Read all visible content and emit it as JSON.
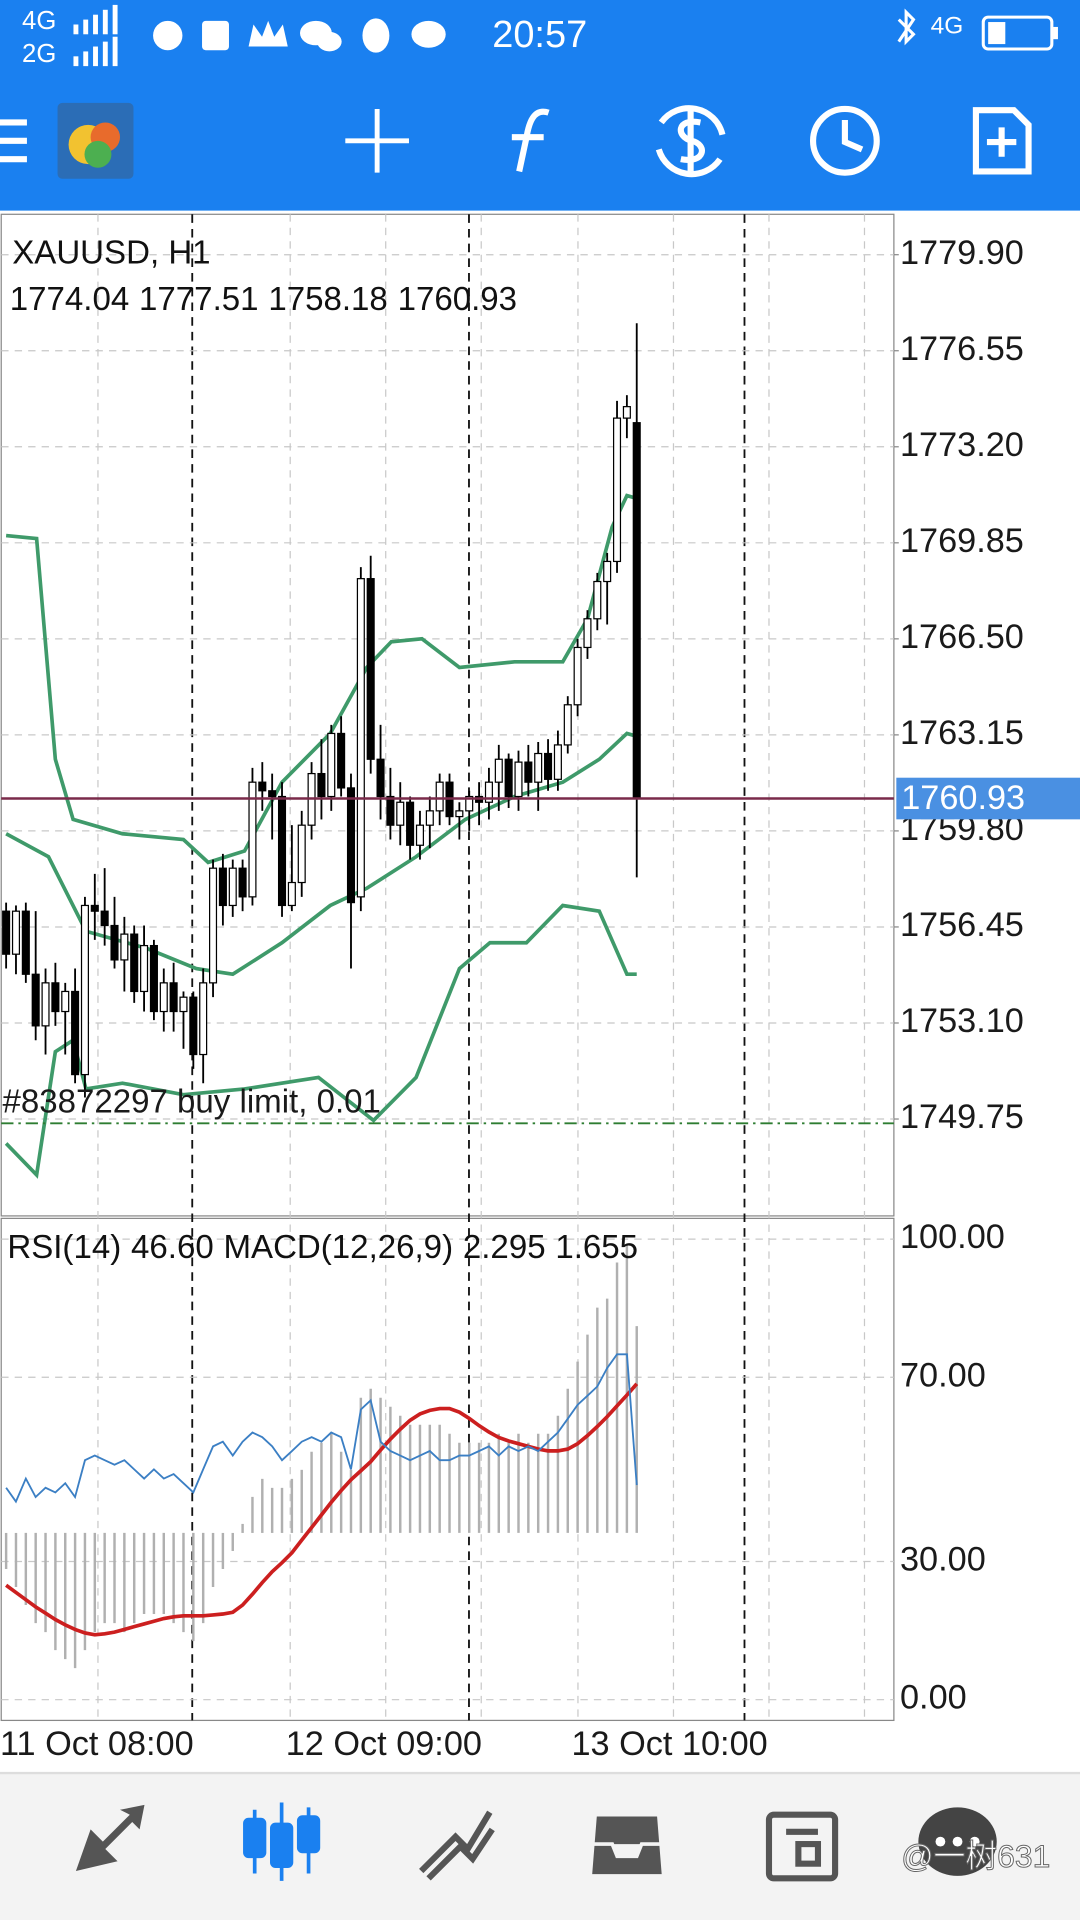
{
  "status_bar": {
    "signal_1": "4G",
    "signal_2": "2G",
    "time": "20:57",
    "network": "4G"
  },
  "watermark": "@一树631",
  "chart_data": [
    {
      "type": "candlestick",
      "title": "XAUUSD, H1",
      "categories": [
        "11 Oct 08:00",
        null,
        null,
        null,
        null,
        null,
        null,
        null,
        null,
        null,
        null,
        null,
        null,
        null,
        null,
        null,
        null,
        null,
        null,
        null,
        null,
        null,
        null,
        null,
        null,
        null,
        null,
        null,
        null,
        "12 Oct 09:00",
        null,
        null,
        null,
        null,
        null,
        null,
        null,
        null,
        null,
        null,
        null,
        null,
        null,
        null,
        null,
        null,
        null,
        null,
        null,
        null,
        null,
        null,
        null,
        null,
        null,
        null,
        null,
        null,
        "13 Oct 10:00",
        null,
        null,
        null,
        null,
        null,
        null
      ],
      "open": [
        1757.0,
        1755.5,
        1757.0,
        1754.8,
        1753.0,
        1754.5,
        1753.5,
        1754.2,
        1751.3,
        1757.2,
        1757.0,
        1756.5,
        1755.3,
        1756.2,
        1754.2,
        1755.8,
        1753.5,
        1754.5,
        1753.5,
        1754.0,
        1752.0,
        1754.5,
        1758.5,
        1757.2,
        1758.5,
        1757.5,
        1761.5,
        1761.2,
        1761.0,
        1757.2,
        1758.0,
        1760.0,
        1761.8,
        1761.0,
        1763.2,
        1761.3,
        1757.5,
        1768.6,
        1762.3,
        1761.0,
        1760.0,
        1760.8,
        1759.3,
        1760.0,
        1760.5,
        1761.5,
        1760.3,
        1760.5,
        1761.0,
        1760.8,
        1761.5,
        1762.3,
        1761.0,
        1762.2,
        1761.5,
        1762.5,
        1761.6,
        1762.8,
        1764.2,
        1766.2,
        1767.2,
        1768.5,
        1769.2,
        1774.2,
        1774.04
      ],
      "high": [
        1757.3,
        1757.2,
        1757.3,
        1757.0,
        1755.0,
        1755.2,
        1754.5,
        1755.0,
        1757.5,
        1758.3,
        1758.5,
        1757.5,
        1756.8,
        1756.5,
        1756.5,
        1756.0,
        1755.0,
        1755.2,
        1754.2,
        1754.2,
        1755.0,
        1758.8,
        1759.0,
        1758.8,
        1758.8,
        1762.0,
        1762.2,
        1761.8,
        1761.5,
        1760.0,
        1760.5,
        1762.2,
        1763.0,
        1763.5,
        1763.8,
        1761.8,
        1769.0,
        1769.4,
        1763.5,
        1762.0,
        1761.5,
        1761.0,
        1760.5,
        1761.0,
        1761.8,
        1761.8,
        1760.8,
        1761.2,
        1761.5,
        1762.0,
        1762.8,
        1762.5,
        1762.6,
        1762.8,
        1762.9,
        1763.0,
        1763.3,
        1764.5,
        1766.5,
        1767.5,
        1768.8,
        1769.5,
        1774.8,
        1775.0,
        1777.51
      ],
      "low": [
        1755.0,
        1754.8,
        1754.5,
        1752.5,
        1752.0,
        1753.0,
        1752.0,
        1751.0,
        1750.5,
        1756.0,
        1755.8,
        1755.0,
        1754.2,
        1753.8,
        1753.5,
        1753.2,
        1752.8,
        1752.8,
        1752.2,
        1751.5,
        1751.0,
        1754.0,
        1756.5,
        1756.8,
        1757.0,
        1757.2,
        1760.5,
        1759.5,
        1756.8,
        1757.0,
        1757.5,
        1759.5,
        1760.2,
        1760.5,
        1761.0,
        1755.0,
        1757.0,
        1761.8,
        1760.2,
        1759.5,
        1759.3,
        1758.8,
        1758.8,
        1759.2,
        1760.0,
        1760.0,
        1759.5,
        1759.8,
        1760.0,
        1760.2,
        1760.5,
        1760.6,
        1760.5,
        1761.0,
        1760.5,
        1761.2,
        1761.2,
        1762.5,
        1763.8,
        1765.8,
        1766.8,
        1767.0,
        1768.8,
        1773.5,
        1758.18
      ],
      "close": [
        1755.5,
        1757.0,
        1754.8,
        1753.0,
        1754.5,
        1753.5,
        1754.2,
        1751.3,
        1757.2,
        1757.0,
        1756.5,
        1755.3,
        1756.2,
        1754.2,
        1755.8,
        1753.5,
        1754.5,
        1753.5,
        1754.0,
        1752.0,
        1754.5,
        1758.5,
        1757.2,
        1758.5,
        1757.5,
        1761.5,
        1761.2,
        1761.0,
        1757.2,
        1758.0,
        1760.0,
        1761.8,
        1761.0,
        1763.2,
        1761.3,
        1757.3,
        1768.6,
        1762.3,
        1761.0,
        1760.0,
        1760.8,
        1759.3,
        1760.0,
        1760.5,
        1761.5,
        1760.3,
        1760.5,
        1761.0,
        1760.8,
        1761.5,
        1762.3,
        1761.0,
        1762.2,
        1761.5,
        1762.5,
        1761.6,
        1762.8,
        1764.2,
        1766.2,
        1767.2,
        1768.5,
        1769.2,
        1774.2,
        1774.6,
        1760.93
      ],
      "up_color": "#ffffff",
      "down_color": "#000000",
      "outline_color": "#000000",
      "bands": {
        "color": "#3f9a6a",
        "lines": [
          {
            "x": [
              0,
              3.1,
              5,
              6.8,
              11.8,
              18,
              20.5,
              24.2,
              28,
              32.9,
              36.6,
              39.1,
              42.2,
              46,
              51.6,
              56.5,
              59,
              61.5,
              63,
              64
            ],
            "values": [
              1770.1,
              1770.0,
              1762.3,
              1760.2,
              1759.7,
              1759.5,
              1758.7,
              1759.1,
              1761.5,
              1763.2,
              1765.5,
              1766.4,
              1766.5,
              1765.5,
              1765.7,
              1765.7,
              1767.2,
              1770.4,
              1771.5,
              1771.4
            ]
          },
          {
            "x": [
              0,
              4.3,
              8.1,
              14.3,
              19.3,
              23,
              28,
              32.9,
              36.6,
              41.6,
              46.6,
              51.6,
              56.5,
              60.2,
              63,
              64
            ],
            "values": [
              1759.7,
              1758.9,
              1756.3,
              1755.7,
              1755.0,
              1754.8,
              1755.9,
              1757.2,
              1757.8,
              1758.9,
              1760.2,
              1761.0,
              1761.5,
              1762.3,
              1763.2,
              1763.1
            ]
          },
          {
            "x": [
              0,
              3.1,
              5,
              6.8,
              8.1,
              11.8,
              18,
              24.2,
              31.7,
              37.3,
              41.6,
              46,
              49.1,
              52.8,
              56.5,
              60.2,
              63,
              64
            ],
            "values": [
              1748.9,
              1747.8,
              1752.1,
              1752.5,
              1750.8,
              1751.0,
              1750.6,
              1750.8,
              1751.2,
              1749.7,
              1751.2,
              1755.0,
              1755.9,
              1755.9,
              1757.2,
              1757.0,
              1754.8,
              1754.8
            ]
          }
        ]
      },
      "price_line_color": "#7a2a4a",
      "price_box_color": "#4a90e2",
      "order": {
        "label": "#83872297 buy limit, 0.01",
        "price": 1749.6,
        "color": "#2e7d32"
      },
      "ylim": [
        1746.37,
        1781.31
      ],
      "yticks": [
        {
          "value": 1779.9,
          "label": "1779.90"
        },
        1776.55,
        {
          "value": 1773.2,
          "label": "1773.20"
        },
        1769.85,
        {
          "value": 1766.5,
          "label": "1766.50"
        },
        1763.15,
        {
          "value": 1759.8,
          "label": "1759.80"
        },
        1756.45,
        {
          "value": 1753.1,
          "label": "1753.10"
        },
        1749.75
      ],
      "grid": true
    },
    {
      "type": "indicator",
      "rsi_label": "RSI(14)",
      "rsi": {
        "color": "#3b7fc4",
        "values": [
          46,
          43,
          48,
          44,
          46,
          45,
          47,
          44,
          52,
          53,
          52,
          51,
          52,
          50,
          48,
          50,
          48,
          49,
          47,
          45,
          50,
          55,
          56,
          53,
          56,
          58,
          57,
          55,
          52,
          54,
          56,
          57,
          56,
          58,
          57,
          50,
          63,
          65,
          56,
          54,
          53,
          52,
          53,
          54,
          52,
          52,
          53,
          53,
          54,
          55,
          53,
          55,
          54,
          55,
          54,
          56,
          58,
          61,
          64,
          66,
          68,
          72,
          75,
          75,
          46.6
        ],
        "value_labels": [
          null,
          null,
          null,
          null,
          null,
          null,
          null,
          null,
          null,
          null,
          null,
          null,
          null,
          null,
          null,
          null,
          null,
          null,
          null,
          null,
          null,
          null,
          null,
          null,
          null,
          null,
          null,
          null,
          null,
          null,
          null,
          null,
          null,
          null,
          null,
          null,
          null,
          null,
          null,
          null,
          null,
          null,
          null,
          null,
          null,
          null,
          null,
          null,
          null,
          null,
          null,
          null,
          null,
          null,
          null,
          null,
          null,
          null,
          null,
          null,
          null,
          null,
          null,
          null,
          "46.60"
        ]
      },
      "macd_label": "MACD(12,26,9)",
      "macd": {
        "color": "#b0b0b0",
        "axis": "y2",
        "values": [
          -0.4,
          -0.6,
          -0.8,
          -1.0,
          -1.1,
          -1.3,
          -1.4,
          -1.5,
          -1.3,
          -1.1,
          -1.0,
          -1.0,
          -1.1,
          -1.0,
          -0.9,
          -0.9,
          -0.9,
          -1.0,
          -1.1,
          -1.2,
          -1.0,
          -0.6,
          -0.4,
          -0.2,
          0.1,
          0.4,
          0.6,
          0.5,
          0.5,
          0.6,
          0.7,
          0.9,
          1.0,
          1.1,
          0.9,
          0.7,
          1.5,
          1.6,
          1.5,
          1.4,
          1.3,
          1.2,
          1.2,
          1.2,
          1.2,
          1.1,
          1.0,
          1.0,
          1.0,
          1.0,
          1.1,
          1.0,
          1.1,
          1.0,
          1.1,
          1.1,
          1.3,
          1.6,
          1.9,
          2.2,
          2.5,
          2.6,
          3.0,
          3.2,
          2.295
        ]
      },
      "signal": {
        "color": "#cc1f1f",
        "axis": "y2",
        "values": [
          -0.58,
          -0.66,
          -0.74,
          -0.82,
          -0.89,
          -0.96,
          -1.02,
          -1.07,
          -1.11,
          -1.13,
          -1.12,
          -1.1,
          -1.07,
          -1.04,
          -1.01,
          -0.98,
          -0.95,
          -0.93,
          -0.92,
          -0.92,
          -0.92,
          -0.91,
          -0.9,
          -0.88,
          -0.8,
          -0.68,
          -0.55,
          -0.43,
          -0.33,
          -0.22,
          -0.08,
          0.06,
          0.2,
          0.34,
          0.47,
          0.59,
          0.69,
          0.79,
          0.92,
          1.04,
          1.15,
          1.25,
          1.32,
          1.36,
          1.38,
          1.38,
          1.34,
          1.27,
          1.19,
          1.12,
          1.06,
          1.02,
          0.99,
          0.96,
          0.93,
          0.91,
          0.91,
          0.93,
          0.99,
          1.08,
          1.18,
          1.29,
          1.41,
          1.53,
          1.655
        ]
      },
      "ylim": [
        -4.5,
        104.5
      ],
      "yticks": [
        {
          "value": 100,
          "label": "100.00"
        },
        {
          "value": 70,
          "label": "70.00"
        },
        {
          "value": 30,
          "label": "30.00"
        },
        {
          "value": 0,
          "label": "0.00"
        }
      ],
      "y2lim": [
        -2.08,
        3.49
      ],
      "grid": true
    }
  ]
}
